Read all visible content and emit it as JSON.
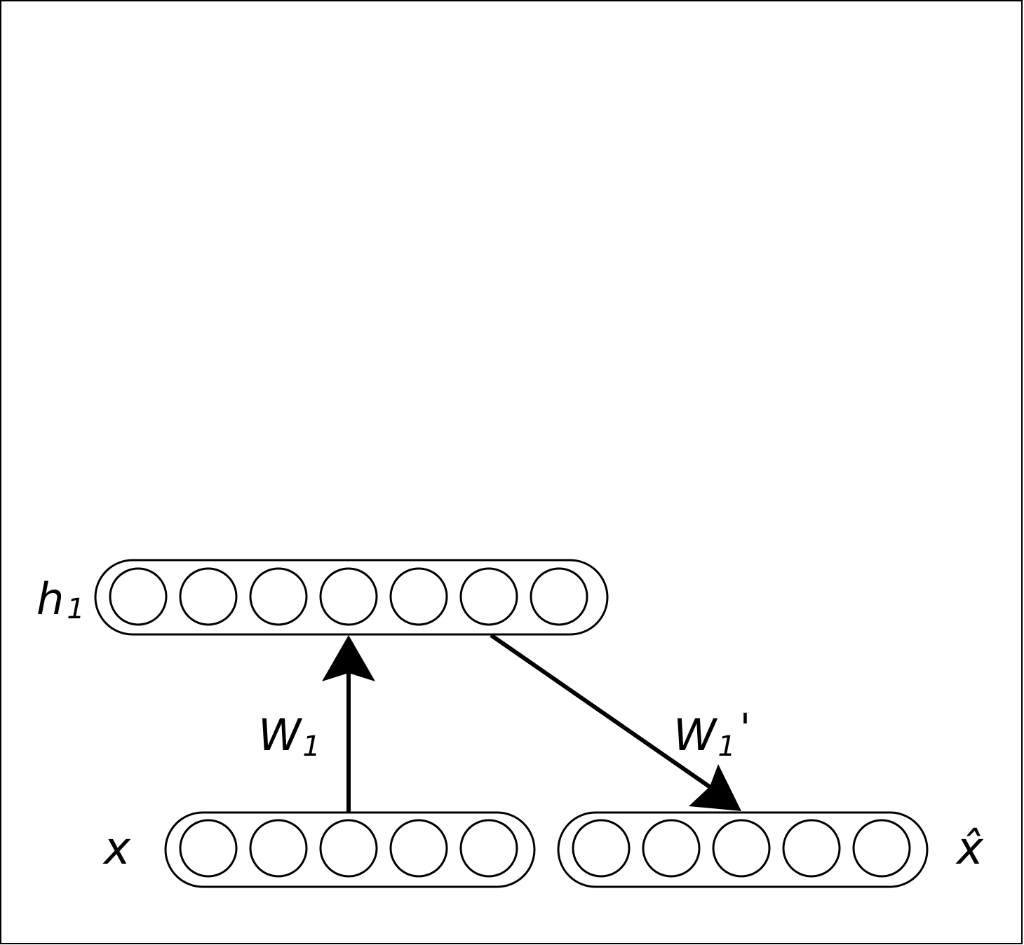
{
  "layers": {
    "hidden": {
      "label": "h",
      "subscript": "1",
      "units": 7
    },
    "input": {
      "label": "x",
      "units": 5
    },
    "output": {
      "label": "x̂",
      "units": 5
    }
  },
  "weights": {
    "encoder": {
      "label": "W",
      "subscript": "1"
    },
    "decoder": {
      "label": "W",
      "subscript": "1",
      "prime": "'"
    }
  },
  "colors": {
    "stroke": "#000000",
    "background": "#ffffff"
  }
}
